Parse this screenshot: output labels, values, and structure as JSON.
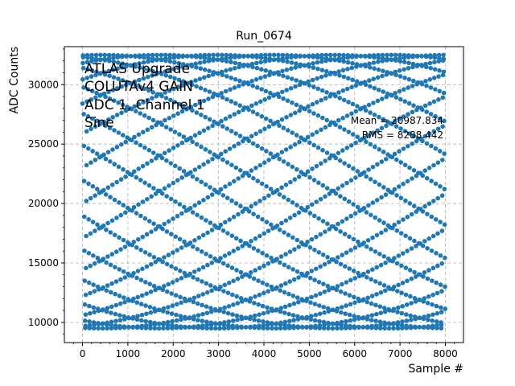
{
  "chart_data": {
    "type": "scatter",
    "title": "Run_0674",
    "xlabel": "Sample #",
    "ylabel": "ADC Counts",
    "xlim": [
      -400,
      8400
    ],
    "ylim": [
      8300,
      33200
    ],
    "xticks": [
      0,
      1000,
      2000,
      3000,
      4000,
      5000,
      6000,
      7000,
      8000
    ],
    "yticks": [
      10000,
      15000,
      20000,
      25000,
      30000
    ],
    "grid": true,
    "marker_color": "#1f77b4",
    "series": [
      {
        "description_points": "sampled sine waveform, every sample drawn as a dot",
        "n_samples": 8000,
        "x_start": 0,
        "x_step": 1,
        "y_min": 9500,
        "y_max": 32500,
        "period_samples": 95.7
      }
    ],
    "annotations": {
      "label_lines": [
        "ATLAS Upgrade",
        "COLUTAv4 GAIN",
        "ADC 1, Channel 1",
        "Sine"
      ],
      "stats_lines": [
        "Mean = 20987.834",
        "RMS = 8288.442"
      ]
    }
  }
}
